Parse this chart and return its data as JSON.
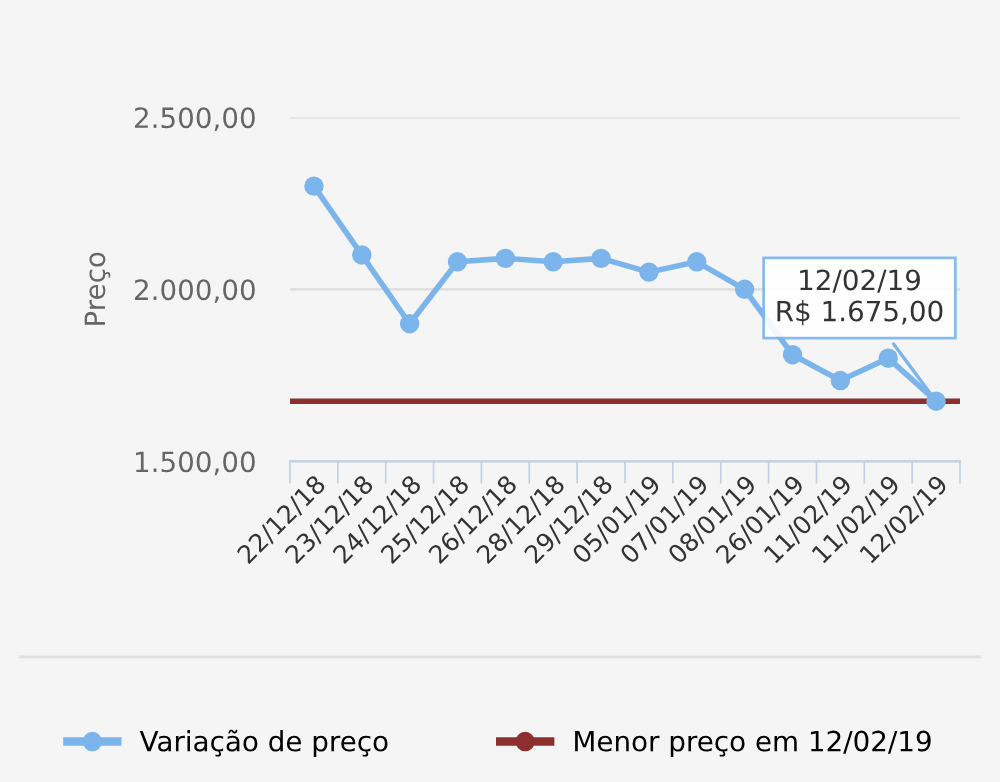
{
  "chart_data": {
    "type": "line",
    "ylabel": "Preço",
    "categories": [
      "22/12/18",
      "23/12/18",
      "24/12/18",
      "25/12/18",
      "26/12/18",
      "28/12/18",
      "29/12/18",
      "05/01/19",
      "07/01/19",
      "08/01/19",
      "26/01/19",
      "11/02/19",
      "11/02/19",
      "12/02/19"
    ],
    "series": [
      {
        "name": "Variação de preço",
        "color": "#7cb5ec",
        "values": [
          2300,
          2100,
          1900,
          2080,
          2090,
          2080,
          2090,
          2050,
          2080,
          2000,
          1810,
          1735,
          1800,
          1675
        ]
      }
    ],
    "ref_lines": [
      {
        "axis": "y",
        "value": 1675,
        "label": "Menor preço em 12/02/19",
        "color": "#8b2f2f"
      }
    ],
    "annotations": [
      {
        "text": "12/02/19\nR$ 1.675,00",
        "x": "12/02/19",
        "y": 1675
      }
    ],
    "ylim": [
      1500,
      2500
    ],
    "yticks": [
      {
        "value": 1500,
        "label": "1.500,00"
      },
      {
        "value": 2000,
        "label": "2.000,00"
      },
      {
        "value": 2500,
        "label": "2.500,00"
      }
    ],
    "grid": "y",
    "legend": "bottom",
    "marker": "circle",
    "line_style": "solid"
  }
}
